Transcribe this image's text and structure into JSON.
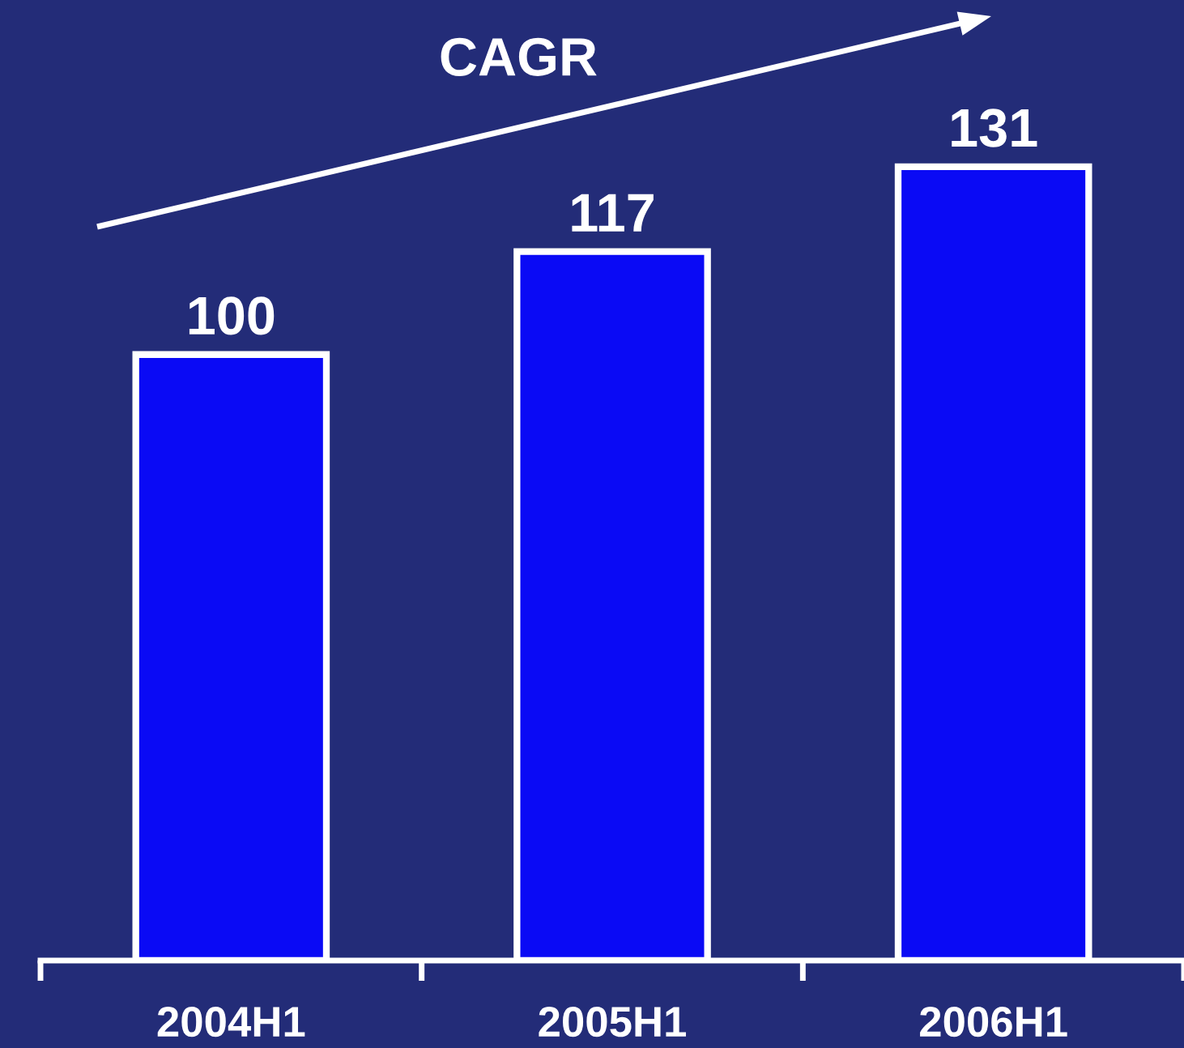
{
  "chart_data": {
    "type": "bar",
    "categories": [
      "2004H1",
      "2005H1",
      "2006H1"
    ],
    "values": [
      100,
      117,
      131
    ],
    "color": "#0a0af5",
    "data_labels": true,
    "annotations": [
      "CAGR"
    ],
    "legend": false,
    "grid": false
  }
}
